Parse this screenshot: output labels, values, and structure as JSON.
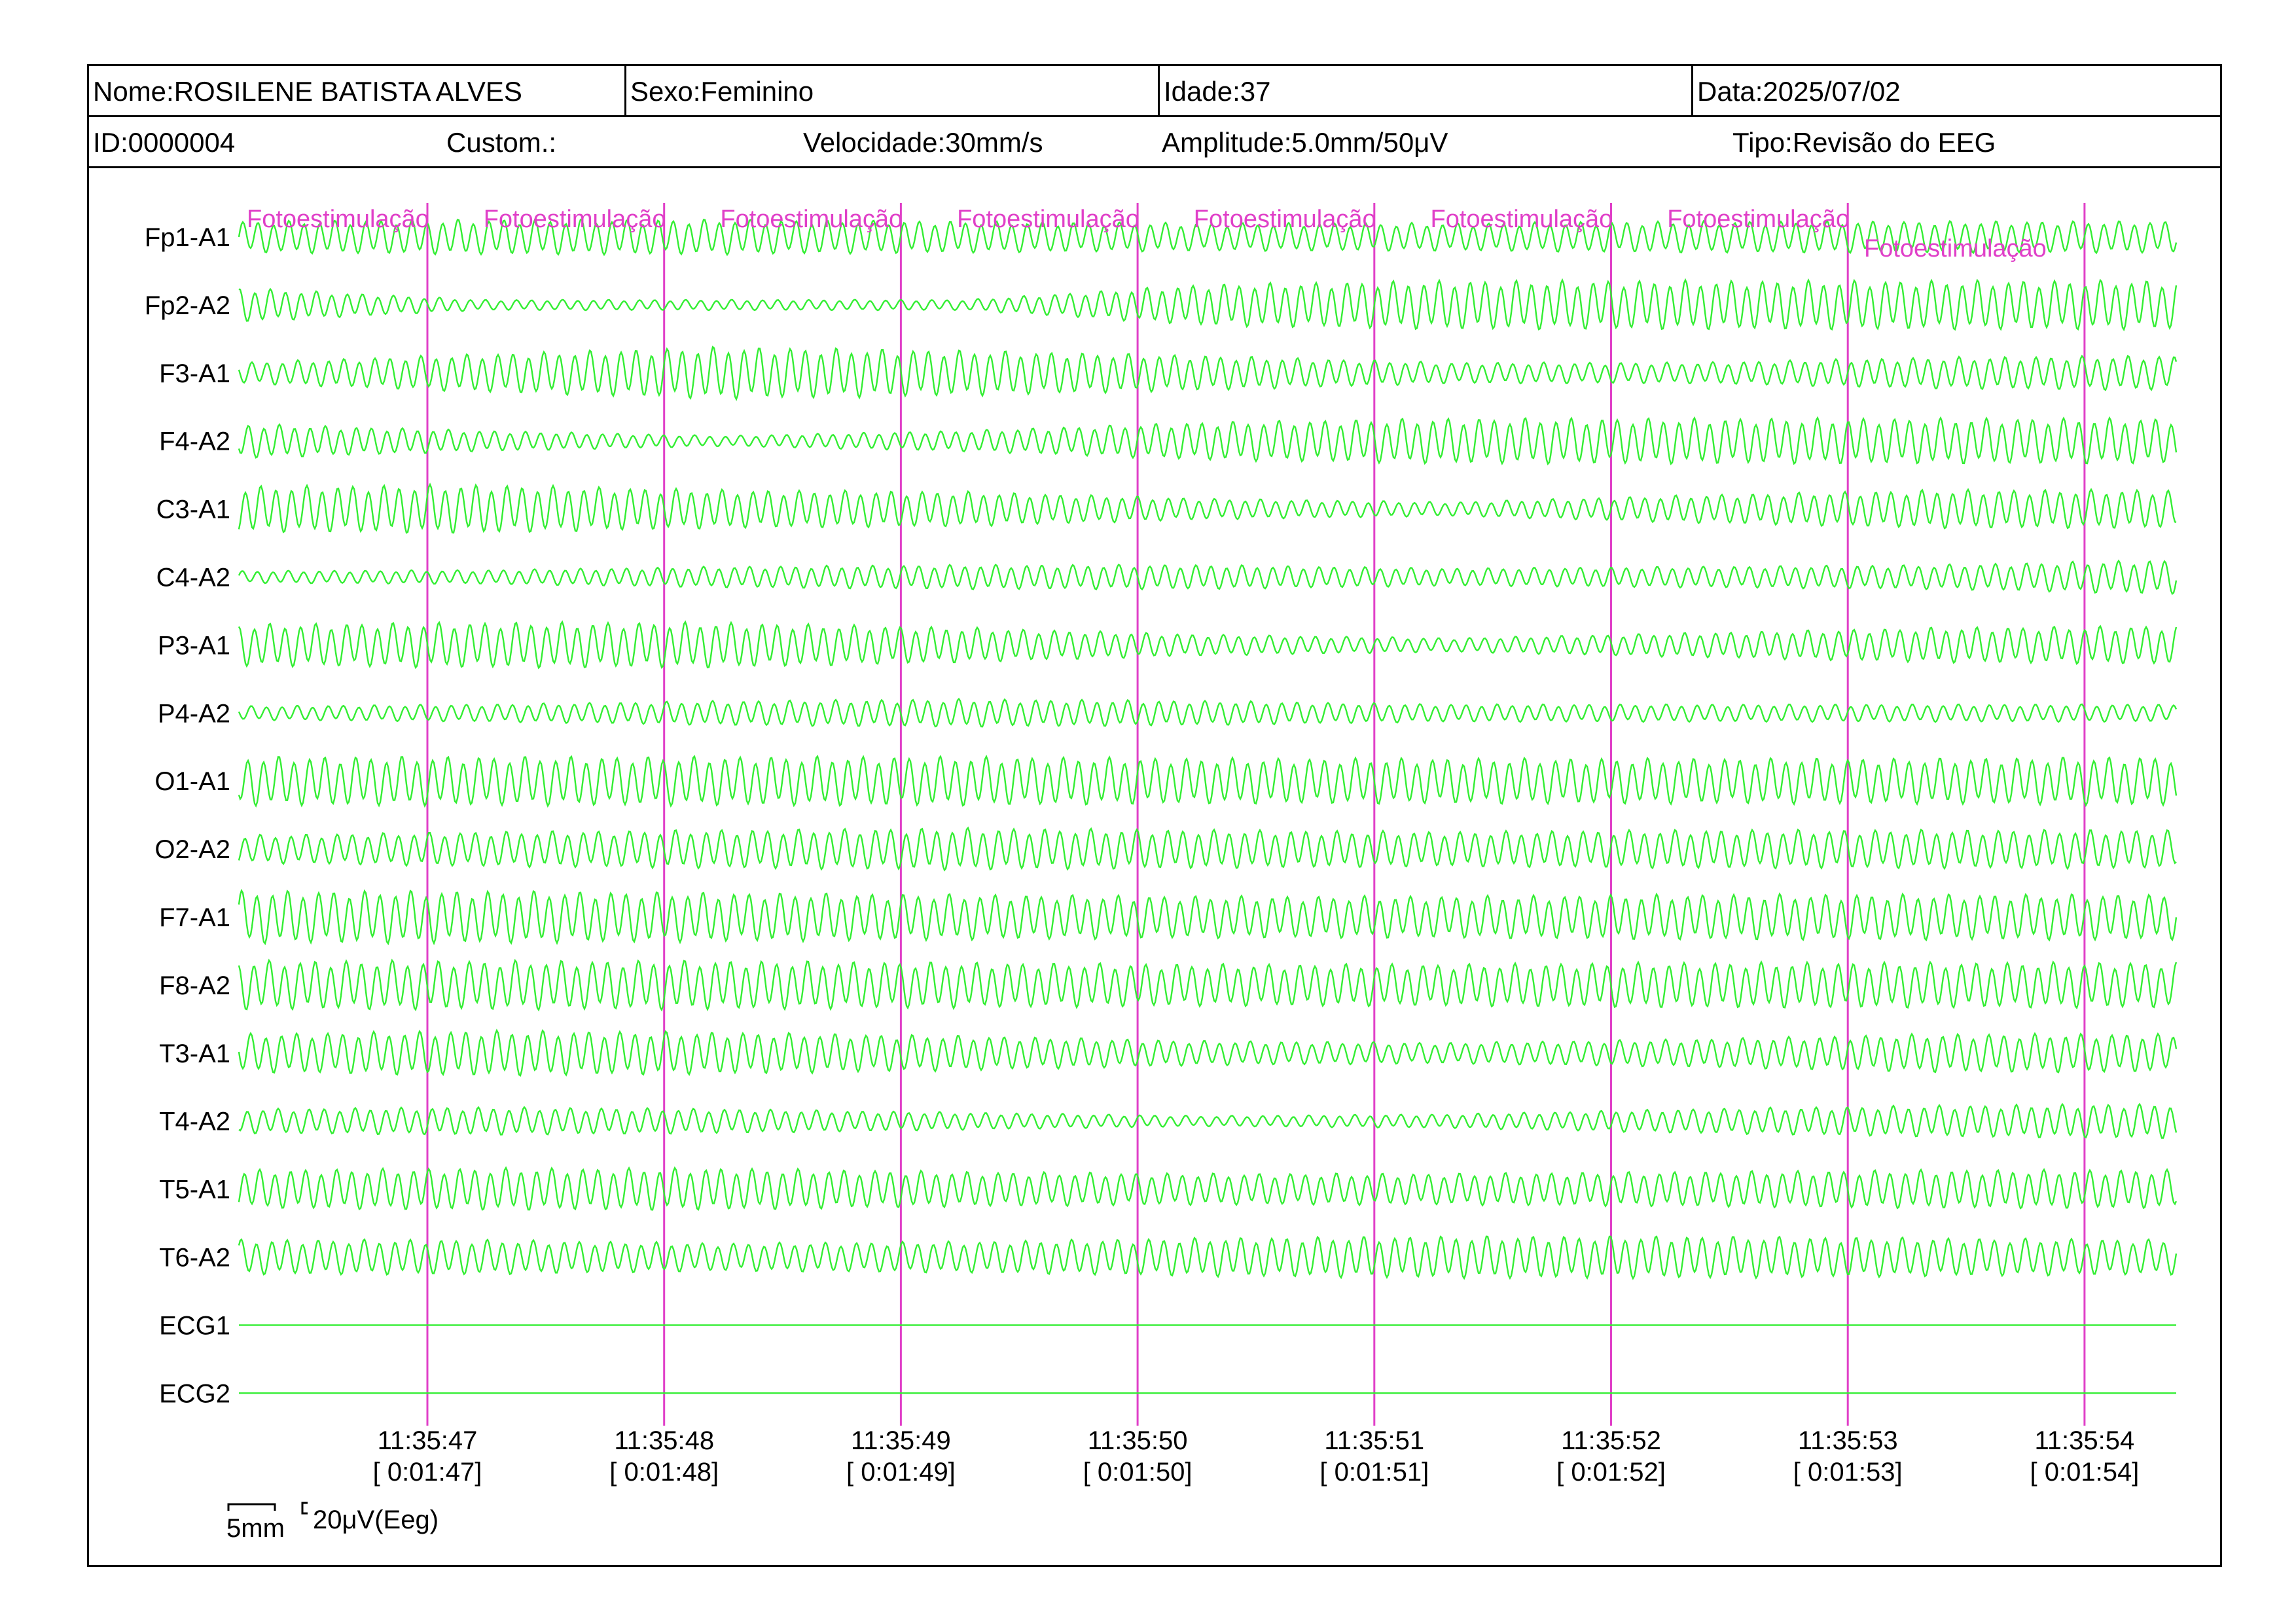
{
  "header": {
    "nome": "Nome:ROSILENE BATISTA ALVES",
    "sexo": "Sexo:Feminino",
    "idade": "Idade:37",
    "data": "Data:2025/07/02",
    "id": "ID:0000004",
    "custom": "Custom.:",
    "velocidade": "Velocidade:30mm/s",
    "amplitude": "Amplitude:5.0mm/50μV",
    "tipo": "Tipo:Revisão do EEG"
  },
  "colors": {
    "trace": "#33ee33",
    "marker": "#e040c8",
    "border": "#000000"
  },
  "chart_data": {
    "type": "line",
    "channels": [
      {
        "name": "Fp1-A1",
        "amplitude": [
          0.9,
          1.0,
          1.0,
          0.9,
          0.8,
          0.8,
          0.9,
          0.9,
          0.9
        ]
      },
      {
        "name": "Fp2-A2",
        "amplitude": [
          1.0,
          0.3,
          0.3,
          0.3,
          1.2,
          1.4,
          1.4,
          1.4,
          1.4
        ]
      },
      {
        "name": "F3-A1",
        "amplitude": [
          0.6,
          1.1,
          1.5,
          1.3,
          1.0,
          0.6,
          0.6,
          0.9,
          1.0
        ]
      },
      {
        "name": "F4-A2",
        "amplitude": [
          1.0,
          0.6,
          0.3,
          0.6,
          1.1,
          1.3,
          1.3,
          1.3,
          1.3
        ]
      },
      {
        "name": "C3-A1",
        "amplitude": [
          1.3,
          1.4,
          1.1,
          1.0,
          0.6,
          0.4,
          0.8,
          1.1,
          1.1
        ]
      },
      {
        "name": "C4-A2",
        "amplitude": [
          0.35,
          0.4,
          0.6,
          0.7,
          0.7,
          0.5,
          0.6,
          0.7,
          1.0
        ]
      },
      {
        "name": "P3-A1",
        "amplitude": [
          1.2,
          1.3,
          1.3,
          1.0,
          0.6,
          0.4,
          0.7,
          1.0,
          1.1
        ]
      },
      {
        "name": "P4-A2",
        "amplitude": [
          0.4,
          0.5,
          0.7,
          0.8,
          0.7,
          0.5,
          0.5,
          0.5,
          0.5
        ]
      },
      {
        "name": "O1-A1",
        "amplitude": [
          1.4,
          1.4,
          1.4,
          1.4,
          1.3,
          1.3,
          1.3,
          1.3,
          1.4
        ]
      },
      {
        "name": "O2-A2",
        "amplitude": [
          0.8,
          1.0,
          1.1,
          1.2,
          1.1,
          1.0,
          1.1,
          1.1,
          1.1
        ]
      },
      {
        "name": "F7-A1",
        "amplitude": [
          1.5,
          1.5,
          1.4,
          1.3,
          1.2,
          1.2,
          1.3,
          1.3,
          1.3
        ]
      },
      {
        "name": "F8-A2",
        "amplitude": [
          1.4,
          1.4,
          1.4,
          1.3,
          1.2,
          1.2,
          1.3,
          1.3,
          1.3
        ]
      },
      {
        "name": "T3-A1",
        "amplitude": [
          1.1,
          1.3,
          1.2,
          1.0,
          0.7,
          0.6,
          0.8,
          1.1,
          1.1
        ]
      },
      {
        "name": "T4-A2",
        "amplitude": [
          0.7,
          0.8,
          0.7,
          0.5,
          0.3,
          0.4,
          0.7,
          0.9,
          1.0
        ]
      },
      {
        "name": "T5-A1",
        "amplitude": [
          1.1,
          1.2,
          1.2,
          1.0,
          0.9,
          0.9,
          1.0,
          1.1,
          1.1
        ]
      },
      {
        "name": "T6-A2",
        "amplitude": [
          1.0,
          1.0,
          0.8,
          0.9,
          1.1,
          1.2,
          1.2,
          1.1,
          1.0
        ]
      },
      {
        "name": "ECG1",
        "amplitude": [
          0,
          0,
          0,
          0,
          0,
          0,
          0,
          0,
          0
        ]
      },
      {
        "name": "ECG2",
        "amplitude": [
          0,
          0,
          0,
          0,
          0,
          0,
          0,
          0,
          0
        ]
      }
    ],
    "time_marks": [
      {
        "clock": "11:35:47",
        "elapsed": "[ 0:01:47]"
      },
      {
        "clock": "11:35:48",
        "elapsed": "[ 0:01:48]"
      },
      {
        "clock": "11:35:49",
        "elapsed": "[ 0:01:49]"
      },
      {
        "clock": "11:35:50",
        "elapsed": "[ 0:01:50]"
      },
      {
        "clock": "11:35:51",
        "elapsed": "[ 0:01:51]"
      },
      {
        "clock": "11:35:52",
        "elapsed": "[ 0:01:52]"
      },
      {
        "clock": "11:35:53",
        "elapsed": "[ 0:01:53]"
      },
      {
        "clock": "11:35:54",
        "elapsed": "[ 0:01:54]"
      }
    ],
    "events": [
      "Fotoestimulação",
      "Fotoestimulação",
      "Fotoestimulação",
      "Fotoestimulação",
      "Fotoestimulação",
      "Fotoestimulação",
      "Fotoestimulação",
      "Fotoestimulação"
    ],
    "scale": {
      "time": "5mm",
      "amplitude": "20μV(Eeg)"
    },
    "grid": false
  }
}
